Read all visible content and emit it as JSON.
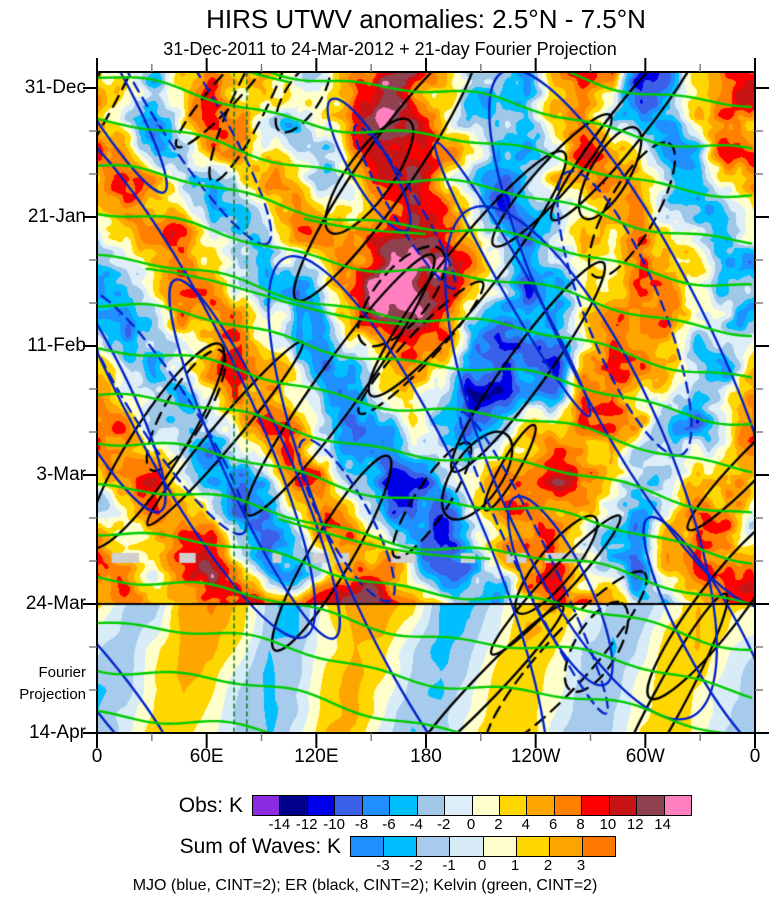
{
  "title": "HIRS UTWV anomalies: 2.5°N - 7.5°N",
  "subtitle": "31-Dec-2011 to 24-Mar-2012 + 21-day Fourier Projection",
  "chart_data": {
    "type": "heatmap",
    "x_axis": {
      "major_tick_labels": [
        "0",
        "60E",
        "120E",
        "180",
        "120W",
        "60W",
        "0"
      ],
      "major_tick_lons": [
        0,
        60,
        120,
        180,
        240,
        300,
        360
      ],
      "minor_tick_lons": [
        30,
        90,
        150,
        210,
        270,
        330
      ],
      "range_deg": [
        0,
        360
      ]
    },
    "y_axis": {
      "major_tick_labels": [
        "31-Dec",
        "21-Jan",
        "11-Feb",
        "3-Mar",
        "24-Mar",
        "14-Apr"
      ],
      "major_tick_days": [
        0,
        21,
        42,
        63,
        84,
        105
      ],
      "minor_tick_days": [
        7,
        14,
        28,
        35,
        49,
        56,
        70,
        77,
        91,
        98
      ],
      "annotation": [
        "Fourier",
        "Projection"
      ],
      "observation_end_day": 84,
      "total_days": 105
    },
    "grid": {
      "note": "coarse estimate of anomaly field (K); obs rows span day 0..84, fourier rows day 84..105; 24 columns span 0..360E",
      "obs_values": [
        [
          6,
          3,
          -4,
          2,
          10,
          3,
          1,
          -2,
          -1,
          8,
          12,
          9,
          2,
          -3,
          -5,
          -6,
          3,
          6,
          4,
          -9,
          -7,
          2,
          8,
          7
        ],
        [
          5,
          -6,
          -8,
          3,
          7,
          5,
          -2,
          -2,
          2,
          10,
          14,
          10,
          5,
          -4,
          -6,
          -3,
          5,
          7,
          -2,
          -8,
          -4,
          4,
          9,
          6
        ],
        [
          7,
          4,
          -6,
          -3,
          4,
          6,
          3,
          -4,
          -3,
          9,
          13,
          8,
          6,
          2,
          -5,
          -6,
          2,
          8,
          5,
          -3,
          -6,
          -4,
          9,
          8
        ],
        [
          4,
          6,
          2,
          -5,
          -7,
          3,
          6,
          4,
          -2,
          4,
          10,
          12,
          7,
          -2,
          -7,
          -4,
          3,
          5,
          6,
          2,
          -5,
          -7,
          2,
          8
        ],
        [
          2,
          5,
          7,
          3,
          -4,
          -6,
          2,
          6,
          3,
          2,
          8,
          13,
          10,
          3,
          -5,
          -8,
          -3,
          4,
          7,
          4,
          -2,
          -6,
          -3,
          3
        ],
        [
          -3,
          2,
          6,
          7,
          2,
          -4,
          -5,
          3,
          7,
          6,
          12,
          15,
          12,
          5,
          -4,
          -7,
          -5,
          2,
          5,
          6,
          3,
          -4,
          -6,
          -2
        ],
        [
          -5,
          -2,
          4,
          8,
          5,
          -2,
          -6,
          -4,
          4,
          8,
          14,
          16,
          14,
          6,
          -3,
          -6,
          -7,
          -3,
          3,
          6,
          5,
          2,
          -5,
          -6
        ],
        [
          -6,
          -4,
          2,
          6,
          8,
          3,
          -4,
          -7,
          -2,
          6,
          15,
          16,
          11,
          4,
          -5,
          -8,
          -6,
          -2,
          4,
          7,
          6,
          3,
          -3,
          -6
        ],
        [
          -4,
          -6,
          -3,
          4,
          7,
          6,
          2,
          -5,
          -6,
          3,
          11,
          13,
          8,
          -2,
          -7,
          -6,
          -4,
          2,
          6,
          8,
          5,
          -2,
          -5,
          -4
        ],
        [
          3,
          -4,
          -7,
          -2,
          5,
          8,
          4,
          -3,
          -7,
          -4,
          6,
          9,
          4,
          -5,
          -9,
          -10,
          -13,
          2,
          8,
          6,
          3,
          -4,
          -6,
          2
        ],
        [
          6,
          2,
          -5,
          -6,
          2,
          6,
          7,
          2,
          -5,
          -6,
          2,
          6,
          -3,
          -13,
          -9,
          -8,
          -6,
          4,
          9,
          4,
          -2,
          -5,
          -3,
          5
        ],
        [
          8,
          5,
          -2,
          -7,
          -4,
          3,
          8,
          5,
          -3,
          -8,
          -4,
          3,
          -6,
          -8,
          -3,
          2,
          5,
          8,
          6,
          2,
          -4,
          -6,
          2,
          7
        ],
        [
          5,
          8,
          3,
          -5,
          -8,
          -2,
          5,
          8,
          2,
          -6,
          -9,
          -4,
          -2,
          -4,
          2,
          5,
          8,
          6,
          3,
          -3,
          -6,
          -2,
          4,
          6
        ],
        [
          -2,
          6,
          8,
          2,
          -6,
          -9,
          -3,
          5,
          7,
          -2,
          -8,
          -10,
          -6,
          -2,
          4,
          7,
          9,
          4,
          -2,
          -5,
          -4,
          3,
          6,
          3
        ],
        [
          -4,
          2,
          7,
          6,
          -2,
          -8,
          -6,
          2,
          8,
          4,
          -4,
          -10,
          -8,
          -3,
          3,
          8,
          6,
          2,
          -4,
          -6,
          -2,
          8,
          9,
          -2
        ],
        [
          4,
          -3,
          3,
          8,
          9,
          -3,
          -8,
          -4,
          4,
          9,
          3,
          -6,
          -10,
          -5,
          5,
          9,
          4,
          -3,
          -6,
          -3,
          4,
          8,
          5,
          3
        ],
        [
          7,
          4,
          -2,
          6,
          14,
          8,
          -5,
          -7,
          2,
          8,
          8,
          2,
          -7,
          -8,
          -2,
          6,
          8,
          3,
          -4,
          -5,
          2,
          9,
          10,
          6
        ],
        [
          5,
          7,
          4,
          3,
          10,
          12,
          8,
          9,
          11,
          12,
          13,
          11,
          4,
          -4,
          -6,
          2,
          6,
          9,
          5,
          -2,
          -3,
          3,
          7,
          8
        ]
      ],
      "fourier_values": [
        [
          1.5,
          -1,
          -2,
          2.5,
          3,
          2,
          -1.5,
          -2.5,
          1,
          2.5,
          3,
          1.5,
          -2,
          -2.5,
          -0.5,
          2,
          2.5,
          0.5,
          -1.5,
          -2,
          0.5,
          2,
          1.5,
          1
        ],
        [
          -1,
          -2,
          0.5,
          2,
          2.5,
          0.5,
          -2,
          -1.5,
          0.5,
          2,
          1.5,
          -0.5,
          -2.5,
          -1.5,
          0.5,
          2,
          1,
          -1,
          -2,
          -0.5,
          1.5,
          2,
          0.5,
          -1
        ],
        [
          -2,
          -1.5,
          1,
          2,
          1,
          -1,
          -2.5,
          -1,
          1.5,
          2.5,
          0.5,
          -1.5,
          -2,
          -0.5,
          1.5,
          2,
          0.5,
          -1.5,
          -1.5,
          0.5,
          2,
          1,
          -0.5,
          -2
        ],
        [
          -1.5,
          -0.5,
          1.5,
          1.5,
          0,
          -1.5,
          -2,
          -0.5,
          2,
          2,
          -0.5,
          -2,
          -1.5,
          0.5,
          2,
          1.5,
          -0.5,
          -2,
          -1,
          1,
          2,
          0.5,
          -1,
          -1.5
        ]
      ]
    },
    "obs_colorbar": {
      "label": "Obs: K",
      "ticks": [
        -14,
        -12,
        -10,
        -8,
        -6,
        -4,
        -2,
        0,
        2,
        4,
        6,
        8,
        10,
        12,
        14
      ],
      "tick_labels": [
        "-14",
        "-12",
        "-10",
        "-8",
        "-6",
        "-4",
        "-2",
        "0",
        "2",
        "4",
        "6",
        "8",
        "10",
        "12",
        "14"
      ],
      "colors": [
        "#8a2be2",
        "#00008b",
        "#0000e8",
        "#3a5fe8",
        "#1e90ff",
        "#00bfff",
        "#9fc7e8",
        "#ddeef9",
        "#ffffcc",
        "#ffd700",
        "#ffa500",
        "#ff7f00",
        "#ff0000",
        "#c81414",
        "#8f4150",
        "#ff7fbf"
      ]
    },
    "sum_colorbar": {
      "label": "Sum of Waves: K",
      "ticks": [
        -3,
        -2,
        -1,
        0,
        1,
        2,
        3
      ],
      "tick_labels": [
        "-3",
        "-2",
        "-1",
        "0",
        "1",
        "2",
        "3"
      ],
      "colors": [
        "#1e90ff",
        "#00bfff",
        "#a6cbec",
        "#d8ecf8",
        "#ffffcc",
        "#ffd700",
        "#ffa500",
        "#ff7800"
      ]
    },
    "caption": "MJO (blue, CINT=2); ER (black, CINT=2); Kelvin (green, CINT=2)",
    "overlays": [
      {
        "wave": "MJO",
        "color_name": "blue",
        "color": "#0022cc",
        "cint": 2
      },
      {
        "wave": "ER",
        "color_name": "black",
        "color": "#000000",
        "cint": 2
      },
      {
        "wave": "Kelvin",
        "color_name": "green",
        "color": "#00cc00",
        "cint": 2
      }
    ],
    "reference_lines": {
      "vertical_dashed_green_lons": [
        75,
        82
      ],
      "vertical_dashed_green_color": "#0a7a2a",
      "horizontal_solid_line_day": 84
    },
    "missing_data": {
      "color": "#cfcfcf",
      "day": 76.5,
      "lon_segments": [
        [
          8,
          23
        ],
        [
          45,
          54
        ],
        [
          96,
          101
        ],
        [
          118,
          127
        ],
        [
          130,
          138
        ],
        [
          161,
          174
        ],
        [
          199,
          207
        ],
        [
          224,
          235
        ],
        [
          245,
          268
        ]
      ]
    }
  }
}
